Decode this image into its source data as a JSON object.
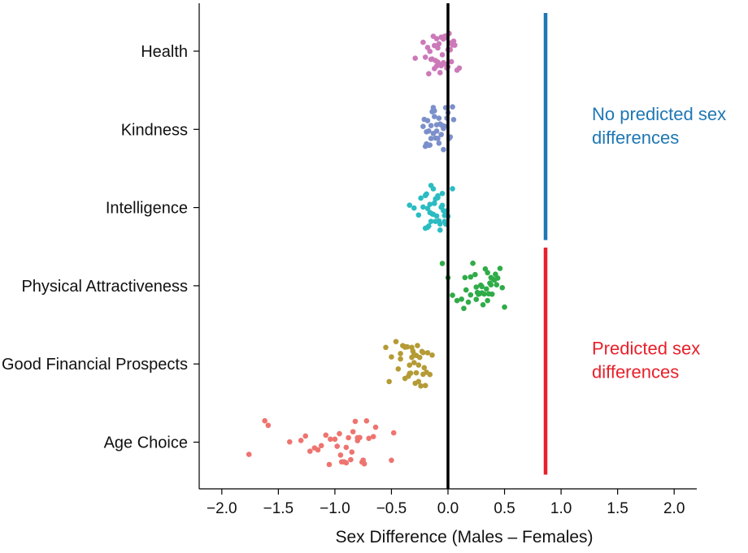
{
  "chart_data": {
    "type": "scatter",
    "title": "",
    "xlabel": "Sex Difference (Males – Females)",
    "ylabel": "",
    "xlim": [
      -2.2,
      2.2
    ],
    "xticks": [
      -2.0,
      -1.5,
      -1.0,
      -0.5,
      0.0,
      0.5,
      1.0,
      1.5,
      2.0
    ],
    "xtick_labels": [
      "−2.0",
      "−1.5",
      "−1.0",
      "−0.5",
      "0.0",
      "0.5",
      "1.0",
      "1.5",
      "2.0"
    ],
    "grid": false,
    "legend": "none",
    "reference_line_x": 0.0,
    "categories": [
      "Health",
      "Kindness",
      "Intelligence",
      "Physical Attractiveness",
      "Good Financial Prospects",
      "Age Choice"
    ],
    "series": [
      {
        "category": "Health",
        "color": "#cc79b9",
        "values": [
          -0.29,
          -0.22,
          -0.2,
          -0.17,
          -0.15,
          -0.14,
          -0.13,
          -0.12,
          -0.11,
          -0.1,
          -0.09,
          -0.08,
          -0.07,
          -0.06,
          -0.05,
          -0.04,
          -0.03,
          -0.02,
          -0.01,
          0.0,
          0.01,
          0.02,
          0.03,
          0.04,
          0.05,
          0.06,
          0.08,
          0.1,
          -0.18,
          -0.09,
          -0.06,
          -0.03,
          -0.01,
          0.02,
          -0.12,
          -0.16,
          -0.07,
          0.0,
          -0.04,
          -0.1
        ]
      },
      {
        "category": "Kindness",
        "color": "#7b8fcb",
        "values": [
          -0.22,
          -0.2,
          -0.19,
          -0.18,
          -0.17,
          -0.16,
          -0.15,
          -0.14,
          -0.13,
          -0.12,
          -0.11,
          -0.1,
          -0.09,
          -0.08,
          -0.07,
          -0.06,
          -0.05,
          -0.04,
          -0.03,
          -0.02,
          -0.01,
          0.0,
          0.02,
          0.04,
          0.05,
          -0.21,
          -0.15,
          -0.12,
          -0.08,
          -0.04,
          -0.1,
          -0.17,
          -0.06,
          0.01,
          -0.13,
          -0.19
        ]
      },
      {
        "category": "Intelligence",
        "color": "#2bbcc3",
        "values": [
          -0.34,
          -0.3,
          -0.26,
          -0.24,
          -0.22,
          -0.2,
          -0.19,
          -0.18,
          -0.17,
          -0.16,
          -0.15,
          -0.14,
          -0.13,
          -0.12,
          -0.11,
          -0.1,
          -0.09,
          -0.08,
          -0.07,
          -0.06,
          -0.05,
          -0.04,
          -0.03,
          -0.02,
          -0.01,
          0.0,
          0.04,
          -0.18,
          -0.13,
          -0.09,
          -0.05,
          -0.15,
          -0.11,
          -0.07,
          -0.2,
          -0.03,
          -0.12,
          -0.16
        ]
      },
      {
        "category": "Physical Attractiveness",
        "color": "#2fac48",
        "values": [
          -0.05,
          0.0,
          0.04,
          0.08,
          0.12,
          0.14,
          0.16,
          0.18,
          0.2,
          0.22,
          0.24,
          0.25,
          0.26,
          0.27,
          0.28,
          0.29,
          0.3,
          0.31,
          0.32,
          0.33,
          0.34,
          0.35,
          0.36,
          0.37,
          0.38,
          0.39,
          0.4,
          0.41,
          0.42,
          0.44,
          0.46,
          0.48,
          0.5,
          0.2,
          0.3,
          0.35,
          0.25,
          0.15,
          0.38,
          0.43
        ]
      },
      {
        "category": "Good Financial Prospects",
        "color": "#b59b35",
        "values": [
          -0.55,
          -0.52,
          -0.5,
          -0.46,
          -0.44,
          -0.42,
          -0.4,
          -0.38,
          -0.37,
          -0.36,
          -0.35,
          -0.34,
          -0.33,
          -0.32,
          -0.31,
          -0.3,
          -0.29,
          -0.28,
          -0.27,
          -0.26,
          -0.25,
          -0.24,
          -0.23,
          -0.22,
          -0.21,
          -0.2,
          -0.18,
          -0.16,
          -0.14,
          -0.38,
          -0.3,
          -0.26,
          -0.22,
          -0.34,
          -0.28,
          -0.19,
          -0.42,
          -0.32
        ]
      },
      {
        "category": "Age Choice",
        "color": "#ee7470",
        "values": [
          -1.76,
          -1.62,
          -1.59,
          -1.4,
          -1.3,
          -1.26,
          -1.22,
          -1.18,
          -1.12,
          -1.08,
          -1.04,
          -1.0,
          -0.98,
          -0.96,
          -0.94,
          -0.92,
          -0.9,
          -0.88,
          -0.86,
          -0.84,
          -0.82,
          -0.8,
          -0.78,
          -0.76,
          -0.74,
          -0.72,
          -0.7,
          -0.66,
          -0.64,
          -0.5,
          -0.48,
          -0.9,
          -0.85,
          -1.05,
          -0.95,
          -0.8,
          -1.15,
          -0.75
        ]
      }
    ],
    "annotations": [
      {
        "text_lines": [
          "No predicted sex",
          "differences"
        ],
        "color": "#1f77b4",
        "applies_to": [
          "Health",
          "Kindness",
          "Intelligence"
        ]
      },
      {
        "text_lines": [
          "Predicted sex",
          "differences"
        ],
        "color": "#e8202a",
        "applies_to": [
          "Physical Attractiveness",
          "Good Financial Prospects",
          "Age Choice"
        ]
      }
    ]
  }
}
